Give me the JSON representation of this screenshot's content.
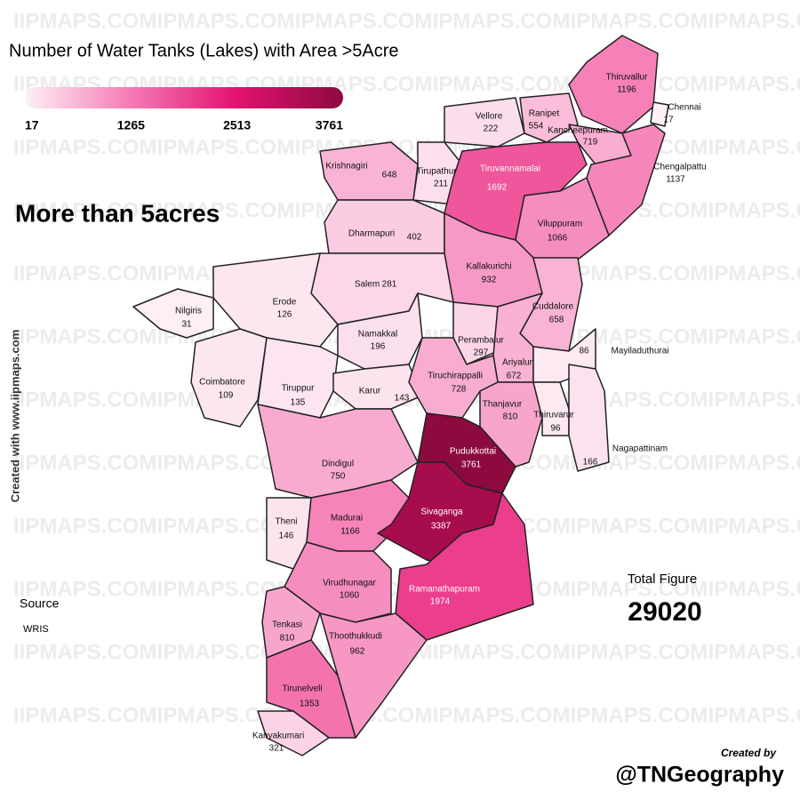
{
  "title": "Number of Water Tanks (Lakes) with Area >5Acre",
  "subtitle": "More than 5acres",
  "legend": {
    "ticks": [
      17,
      1265,
      2513,
      3761
    ],
    "lim": [
      17,
      3761
    ],
    "colors": [
      "#fdf0f6",
      "#f57ab4",
      "#e3126f",
      "#8d0a3f"
    ]
  },
  "districts": [
    {
      "name": "Thiruvallur",
      "value": 1196
    },
    {
      "name": "Chennai",
      "value": 17
    },
    {
      "name": "Vellore",
      "value": 222
    },
    {
      "name": "Ranipet",
      "value": 554
    },
    {
      "name": "Kancheepuram",
      "value": 719
    },
    {
      "name": "Krishnagiri",
      "value": 648
    },
    {
      "name": "Tirupathur",
      "value": 211
    },
    {
      "name": "Tiruvannamalai",
      "value": 1692
    },
    {
      "name": "Chengalpattu",
      "value": 1137
    },
    {
      "name": "Viluppuram",
      "value": 1066
    },
    {
      "name": "Dharmapuri",
      "value": 402
    },
    {
      "name": "Kallakurichi",
      "value": 932
    },
    {
      "name": "Salem",
      "value": 281
    },
    {
      "name": "Cuddalore",
      "value": 658
    },
    {
      "name": "Nilgiris",
      "value": 31
    },
    {
      "name": "Erode",
      "value": 126
    },
    {
      "name": "Namakkal",
      "value": 196
    },
    {
      "name": "Perambalur",
      "value": 297
    },
    {
      "name": "Ariyalur",
      "value": 672
    },
    {
      "name": "Mayiladuthurai",
      "value": 86
    },
    {
      "name": "Coimbatore",
      "value": 109
    },
    {
      "name": "Tiruppur",
      "value": 135
    },
    {
      "name": "Karur",
      "value": 143
    },
    {
      "name": "Tiruchirappalli",
      "value": 728
    },
    {
      "name": "Thanjavur",
      "value": 810
    },
    {
      "name": "Thiruvarur",
      "value": 96
    },
    {
      "name": "Nagapattinam",
      "value": 166
    },
    {
      "name": "Dindigul",
      "value": 750
    },
    {
      "name": "Pudukkottai",
      "value": 3761
    },
    {
      "name": "Theni",
      "value": 146
    },
    {
      "name": "Madurai",
      "value": 1166
    },
    {
      "name": "Sivaganga",
      "value": 3387
    },
    {
      "name": "Virudhunagar",
      "value": 1060
    },
    {
      "name": "Ramanathapuram",
      "value": 1974
    },
    {
      "name": "Tenkasi",
      "value": 810
    },
    {
      "name": "Thoothukkudi",
      "value": 962
    },
    {
      "name": "Tirunelveli",
      "value": 1353
    },
    {
      "name": "Kanyakumari",
      "value": 321
    }
  ],
  "total_label": "Total Figure",
  "total": 29020,
  "source_label": "Source",
  "source": "WRIS",
  "credit": "Created with www.iipmaps.com",
  "created_by": "Created by",
  "handle": "@TNGeography",
  "watermark": "IIPMAPS.COM"
}
